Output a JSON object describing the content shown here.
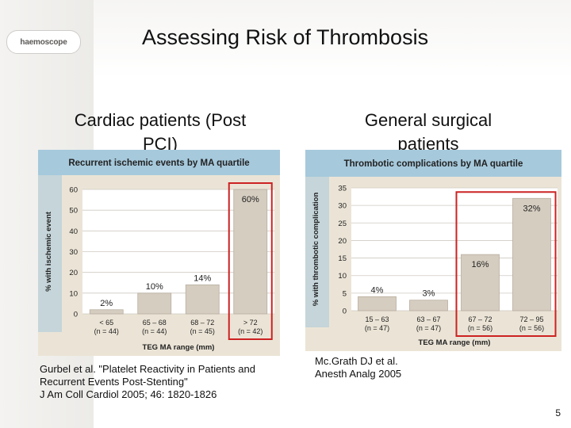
{
  "slide": {
    "title": "Assessing Risk of Thrombosis",
    "logo_text": "haemoscope",
    "page_number": "5"
  },
  "left": {
    "heading_line1": "Cardiac patients (Post",
    "heading_line2": "PCI)",
    "citation_line1": "Gurbel et al. \"Platelet Reactivity in Patients and",
    "citation_line2": "Recurrent Events Post-Stenting\"",
    "citation_line3": "J Am Coll Cardiol 2005; 46: 1820-1826"
  },
  "right": {
    "heading_line1": "General surgical",
    "heading_line2": "patients",
    "citation_line1": "Mc.Grath DJ et al.",
    "citation_line2": "Anesth Analg 2005"
  },
  "colors": {
    "header_band": "#a6c9dc",
    "bar": "#d5cdc0",
    "bar_stroke": "#b8ae9f",
    "highlight": "#cc2222",
    "chart_bg": "#ebe4d6"
  },
  "chart_data": [
    {
      "type": "bar",
      "title": "Recurrent ischemic events by MA quartile",
      "xlabel": "TEG MA range (mm)",
      "ylabel": "% with ischemic event",
      "ylim": [
        0,
        60
      ],
      "yticks": [
        0,
        10,
        20,
        30,
        40,
        50,
        60
      ],
      "grid": true,
      "categories": [
        {
          "line1": "< 65",
          "line2": "(n = 44)"
        },
        {
          "line1": "65 – 68",
          "line2": "(n = 44)"
        },
        {
          "line1": "68 – 72",
          "line2": "(n = 45)"
        },
        {
          "line1": "> 72",
          "line2": "(n = 42)"
        }
      ],
      "values": [
        2,
        10,
        14,
        60
      ],
      "value_labels": [
        "2%",
        "10%",
        "14%",
        "60%"
      ],
      "highlight_index": 3
    },
    {
      "type": "bar",
      "title": "Thrombotic complications by MA quartile",
      "xlabel": "TEG MA range (mm)",
      "ylabel": "% with thrombotic complication",
      "ylim": [
        0,
        35
      ],
      "yticks": [
        0,
        5,
        10,
        15,
        20,
        25,
        30,
        35
      ],
      "grid": true,
      "categories": [
        {
          "line1": "15 – 63",
          "line2": "(n = 47)"
        },
        {
          "line1": "63 – 67",
          "line2": "(n = 47)"
        },
        {
          "line1": "67 – 72",
          "line2": "(n = 56)"
        },
        {
          "line1": "72 – 95",
          "line2": "(n = 56)"
        }
      ],
      "values": [
        4,
        3,
        16,
        32
      ],
      "value_labels": [
        "4%",
        "3%",
        "16%",
        "32%"
      ],
      "highlight_index": [
        2,
        3
      ]
    }
  ]
}
